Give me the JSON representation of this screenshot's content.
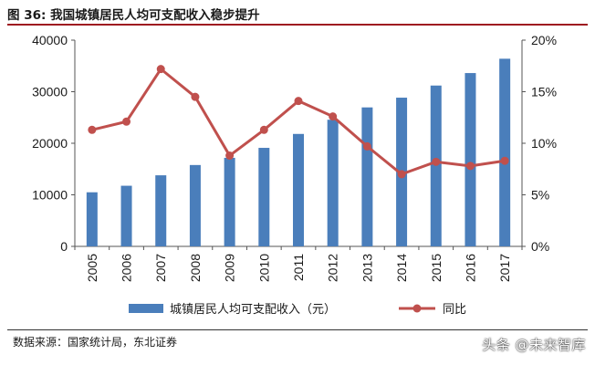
{
  "figure": {
    "title": "图 36: 我国城镇居民人均可支配收入稳步提升",
    "source": "数据来源：国家统计局，东北证券",
    "watermark": "头条 @未来智库"
  },
  "colors": {
    "bar": "#4a7ebb",
    "line": "#c0504d",
    "title_rule": "#9e1b20"
  },
  "chart_data": {
    "type": "bar",
    "title": "图 36: 我国城镇居民人均可支配收入稳步提升",
    "categories": [
      "2005",
      "2006",
      "2007",
      "2008",
      "2009",
      "2010",
      "2011",
      "2012",
      "2013",
      "2014",
      "2015",
      "2016",
      "2017"
    ],
    "series": [
      {
        "name": "城镇居民人均可支配收入（元）",
        "type": "bar",
        "axis": "left",
        "values": [
          10493,
          11759,
          13786,
          15781,
          17175,
          19109,
          21810,
          24565,
          26955,
          28844,
          31195,
          33616,
          36396
        ]
      },
      {
        "name": "同比",
        "type": "line",
        "axis": "right",
        "unit": "%",
        "values": [
          11.3,
          12.1,
          17.2,
          14.5,
          8.8,
          11.3,
          14.1,
          12.6,
          9.7,
          7.0,
          8.2,
          7.8,
          8.3
        ]
      }
    ],
    "y_left": {
      "ylim": [
        0,
        40000
      ],
      "ticks": [
        "0",
        "10000",
        "20000",
        "30000",
        "40000"
      ]
    },
    "y_right": {
      "ylim": [
        0,
        20
      ],
      "ticks": [
        "0%",
        "5%",
        "10%",
        "15%",
        "20%"
      ]
    },
    "grid": false,
    "legend_position": "bottom"
  }
}
